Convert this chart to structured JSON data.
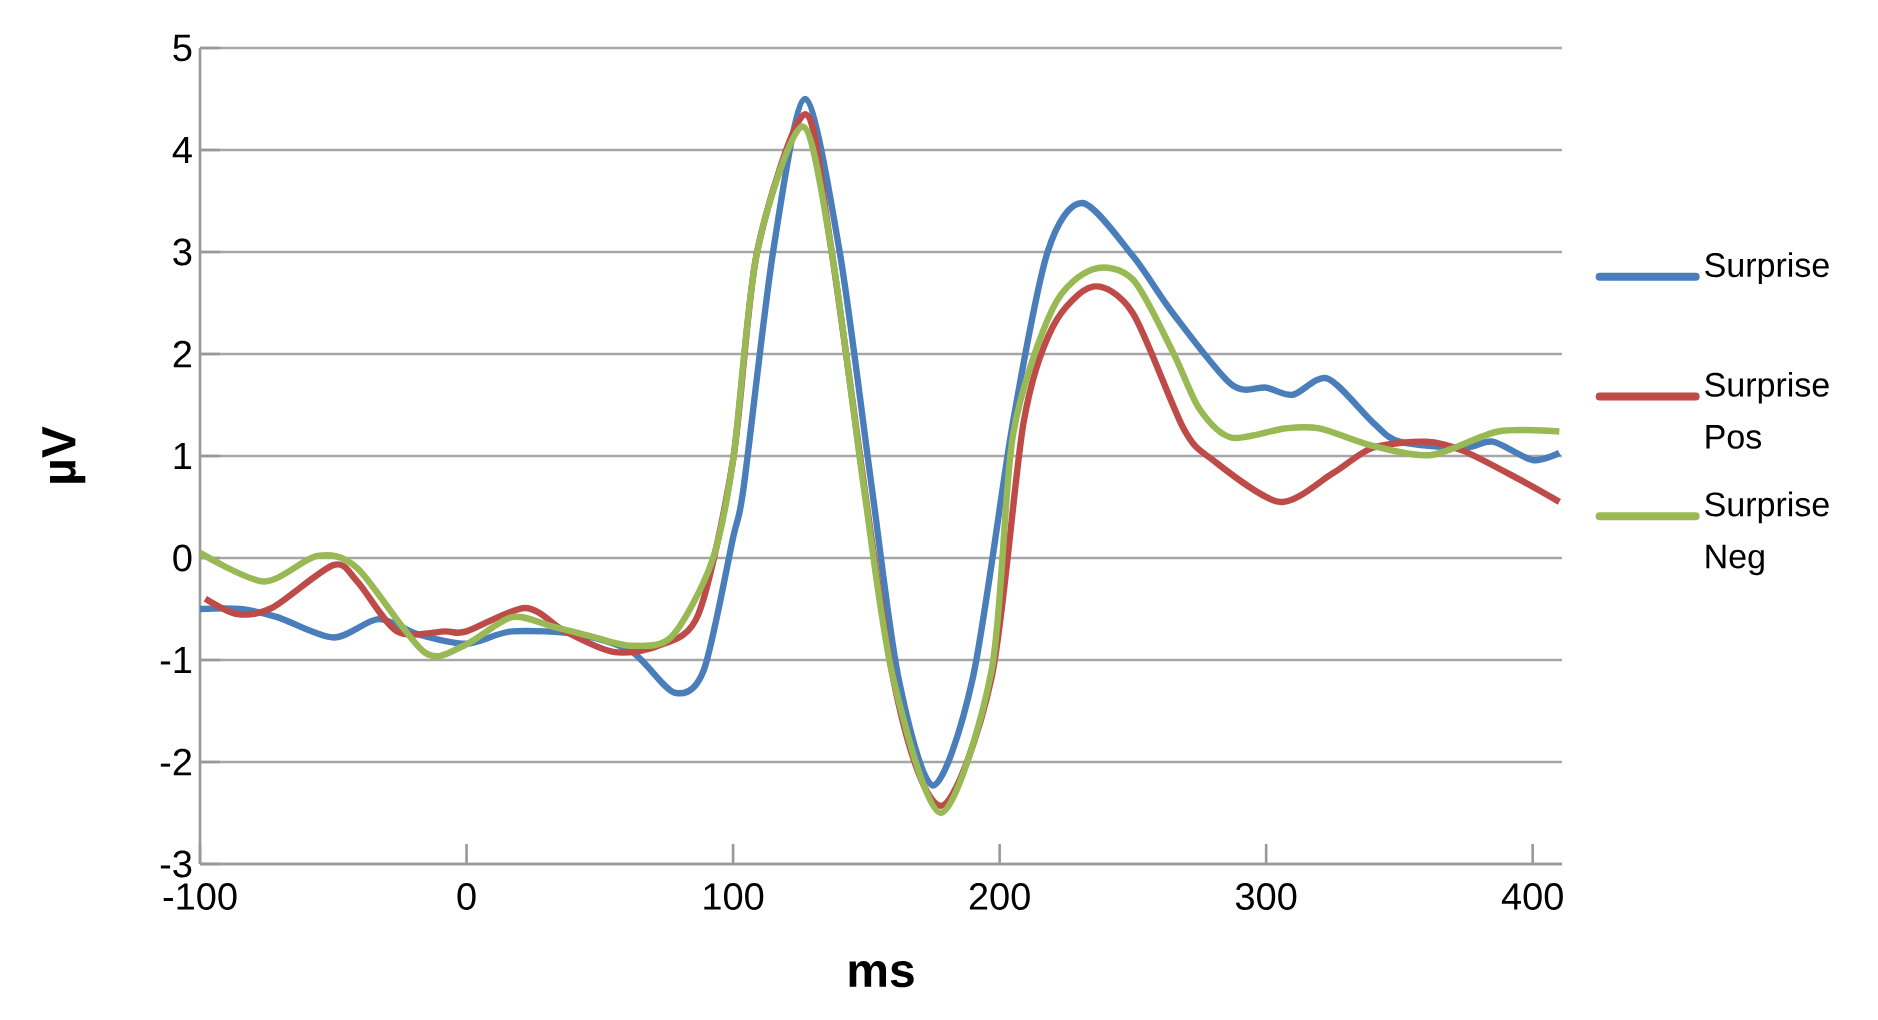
{
  "chart_data": {
    "type": "line",
    "xlabel": "ms",
    "ylabel": "µV",
    "xlim": [
      -100,
      411
    ],
    "ylim": [
      -3,
      5
    ],
    "xticks": [
      -100,
      0,
      100,
      200,
      300,
      400
    ],
    "yticks": [
      -3,
      -2,
      -1,
      0,
      1,
      2,
      3,
      4,
      5
    ],
    "grid": "y",
    "legend": "right",
    "line_style": "solid",
    "series": [
      {
        "name": "Surprise",
        "color": "#4a7ebb",
        "x": [
          -100,
          -85,
          -71,
          -50,
          -33,
          -18,
          0,
          17,
          42,
          62,
          78,
          89,
          100,
          104,
          115,
          127,
          140,
          152,
          162,
          175,
          190,
          205,
          218,
          231,
          250,
          265,
          287,
          300,
          310,
          323,
          340,
          350,
          374,
          385,
          400,
          410
        ],
        "values": [
          -0.5,
          -0.5,
          -0.58,
          -0.78,
          -0.6,
          -0.75,
          -0.84,
          -0.72,
          -0.75,
          -0.92,
          -1.32,
          -1.1,
          0.2,
          0.7,
          3.0,
          4.5,
          3.0,
          0.7,
          -1.17,
          -2.23,
          -1.17,
          1.33,
          3.0,
          3.48,
          2.96,
          2.4,
          1.7,
          1.67,
          1.6,
          1.76,
          1.33,
          1.14,
          1.08,
          1.14,
          0.96,
          1.03
        ]
      },
      {
        "name": "Surprise Pos",
        "color": "#be4b48",
        "x": [
          -98,
          -86,
          -73,
          -50,
          -41,
          -26,
          -8,
          0,
          22,
          37,
          55,
          72,
          87,
          100,
          109,
          127,
          137,
          149,
          160,
          178,
          197,
          209,
          220,
          235,
          250,
          269,
          280,
          305,
          325,
          340,
          360,
          374,
          395,
          410
        ],
        "values": [
          -0.4,
          -0.55,
          -0.49,
          -0.07,
          -0.23,
          -0.72,
          -0.72,
          -0.72,
          -0.49,
          -0.72,
          -0.92,
          -0.86,
          -0.55,
          0.96,
          3.0,
          4.35,
          3.0,
          null,
          -1.17,
          -2.43,
          -1.17,
          1.33,
          2.27,
          2.66,
          2.4,
          1.27,
          0.96,
          0.55,
          0.83,
          1.08,
          1.14,
          1.05,
          0.77,
          0.55
        ]
      },
      {
        "name": "Surprise Neg",
        "color": "#98b954",
        "x": [
          -100,
          -76,
          -56,
          -41,
          -16,
          -1,
          17,
          32,
          47,
          62,
          77,
          92,
          100,
          109,
          126,
          137,
          149,
          160,
          178,
          197,
          205,
          220,
          235,
          250,
          265,
          275,
          287,
          307,
          320,
          340,
          362,
          387,
          410
        ],
        "values": [
          0.05,
          -0.23,
          0.02,
          -0.1,
          -0.92,
          -0.86,
          -0.58,
          -0.67,
          -0.77,
          -0.86,
          -0.77,
          -0.04,
          0.96,
          3.0,
          4.23,
          3.0,
          0.7,
          -1.17,
          -2.5,
          -1.1,
          1.2,
          2.45,
          2.83,
          2.73,
          2.02,
          1.46,
          1.18,
          1.27,
          1.27,
          1.1,
          1.01,
          1.24,
          1.24
        ]
      }
    ]
  }
}
